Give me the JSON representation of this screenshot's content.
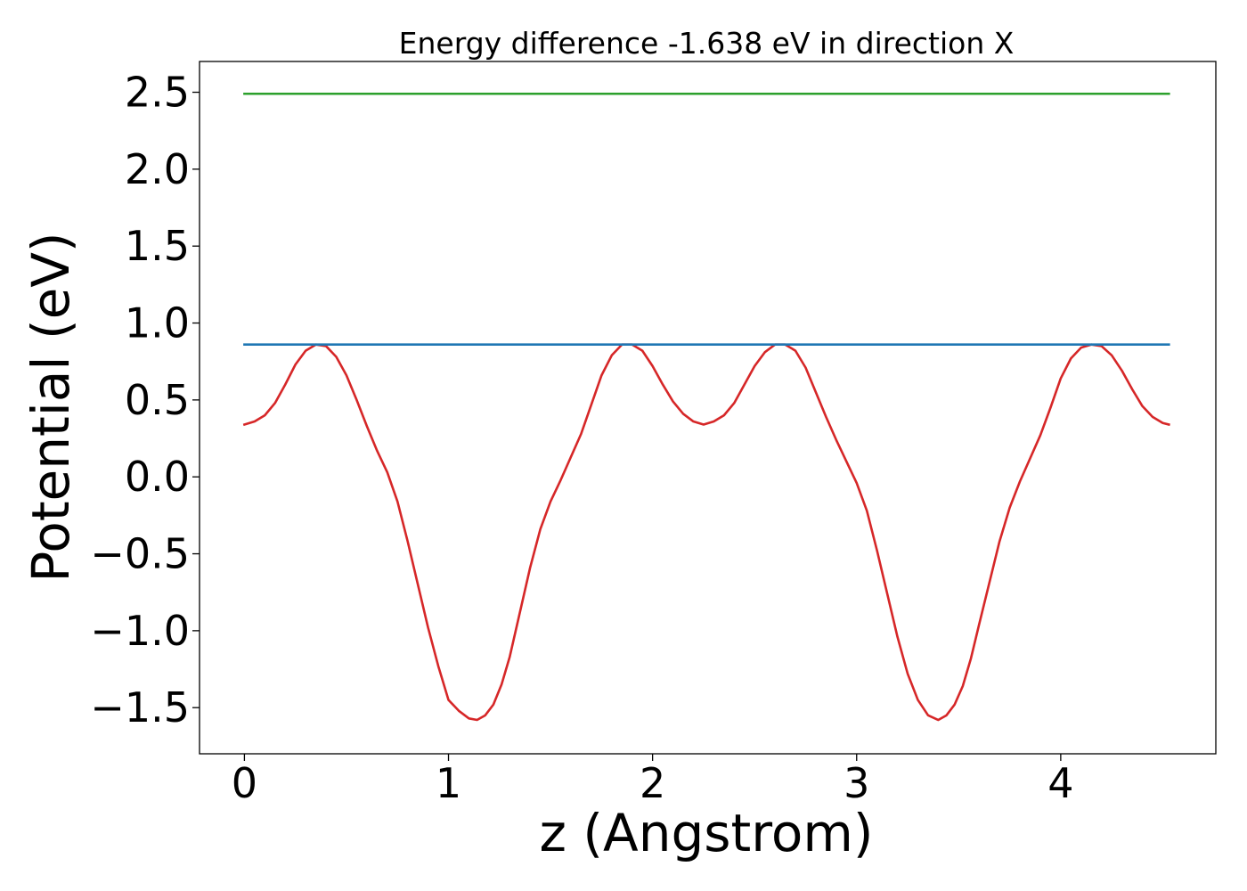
{
  "chart_data": {
    "type": "line",
    "title": "Energy difference -1.638 eV in direction X",
    "xlabel": "z (Angstrom)",
    "ylabel": "Potential (eV)",
    "xlim": [
      -0.22,
      4.76
    ],
    "ylim": [
      -1.8,
      2.7
    ],
    "xticks": [
      0,
      1,
      2,
      3,
      4
    ],
    "xtick_labels": [
      "0",
      "1",
      "2",
      "3",
      "4"
    ],
    "yticks": [
      -1.5,
      -1.0,
      -0.5,
      0.0,
      0.5,
      1.0,
      1.5,
      2.0,
      2.5
    ],
    "ytick_labels": [
      "−1.5",
      "−1.0",
      "−0.5",
      "0.0",
      "0.5",
      "1.0",
      "1.5",
      "2.0",
      "2.5"
    ],
    "grid": false,
    "series": [
      {
        "color": "#d62728",
        "x": [
          0.0,
          0.05,
          0.1,
          0.15,
          0.2,
          0.25,
          0.3,
          0.35,
          0.4,
          0.45,
          0.5,
          0.55,
          0.6,
          0.65,
          0.7,
          0.75,
          0.8,
          0.85,
          0.9,
          0.95,
          1.0,
          1.05,
          1.1,
          1.14,
          1.18,
          1.22,
          1.26,
          1.3,
          1.35,
          1.4,
          1.45,
          1.5,
          1.55,
          1.6,
          1.65,
          1.7,
          1.75,
          1.8,
          1.85,
          1.9,
          1.95,
          2.0,
          2.05,
          2.1,
          2.15,
          2.2,
          2.25,
          2.3,
          2.35,
          2.4,
          2.45,
          2.5,
          2.55,
          2.6,
          2.65,
          2.7,
          2.75,
          2.8,
          2.85,
          2.9,
          2.95,
          3.0,
          3.05,
          3.1,
          3.15,
          3.2,
          3.25,
          3.3,
          3.35,
          3.4,
          3.44,
          3.48,
          3.52,
          3.56,
          3.6,
          3.65,
          3.7,
          3.75,
          3.8,
          3.85,
          3.9,
          3.95,
          4.0,
          4.05,
          4.1,
          4.15,
          4.2,
          4.25,
          4.3,
          4.35,
          4.4,
          4.45,
          4.5,
          4.53
        ],
        "y": [
          0.34,
          0.36,
          0.4,
          0.48,
          0.6,
          0.73,
          0.82,
          0.86,
          0.85,
          0.78,
          0.66,
          0.5,
          0.33,
          0.17,
          0.03,
          -0.16,
          -0.42,
          -0.7,
          -0.98,
          -1.23,
          -1.45,
          -1.52,
          -1.57,
          -1.58,
          -1.55,
          -1.48,
          -1.35,
          -1.17,
          -0.88,
          -0.59,
          -0.34,
          -0.16,
          -0.02,
          0.13,
          0.28,
          0.47,
          0.66,
          0.79,
          0.86,
          0.86,
          0.82,
          0.72,
          0.6,
          0.49,
          0.41,
          0.36,
          0.34,
          0.36,
          0.4,
          0.48,
          0.6,
          0.72,
          0.81,
          0.86,
          0.86,
          0.82,
          0.71,
          0.55,
          0.39,
          0.24,
          0.1,
          -0.04,
          -0.22,
          -0.48,
          -0.76,
          -1.04,
          -1.28,
          -1.45,
          -1.55,
          -1.58,
          -1.55,
          -1.48,
          -1.36,
          -1.18,
          -0.96,
          -0.69,
          -0.42,
          -0.2,
          -0.03,
          0.12,
          0.27,
          0.45,
          0.64,
          0.77,
          0.84,
          0.86,
          0.85,
          0.79,
          0.69,
          0.57,
          0.46,
          0.39,
          0.35,
          0.34
        ]
      },
      {
        "color": "#1f77b4",
        "x": [
          0.0,
          4.53
        ],
        "y": [
          0.86,
          0.86
        ]
      },
      {
        "color": "#2ca02c",
        "x": [
          0.0,
          4.53
        ],
        "y": [
          2.49,
          2.49
        ]
      }
    ]
  }
}
